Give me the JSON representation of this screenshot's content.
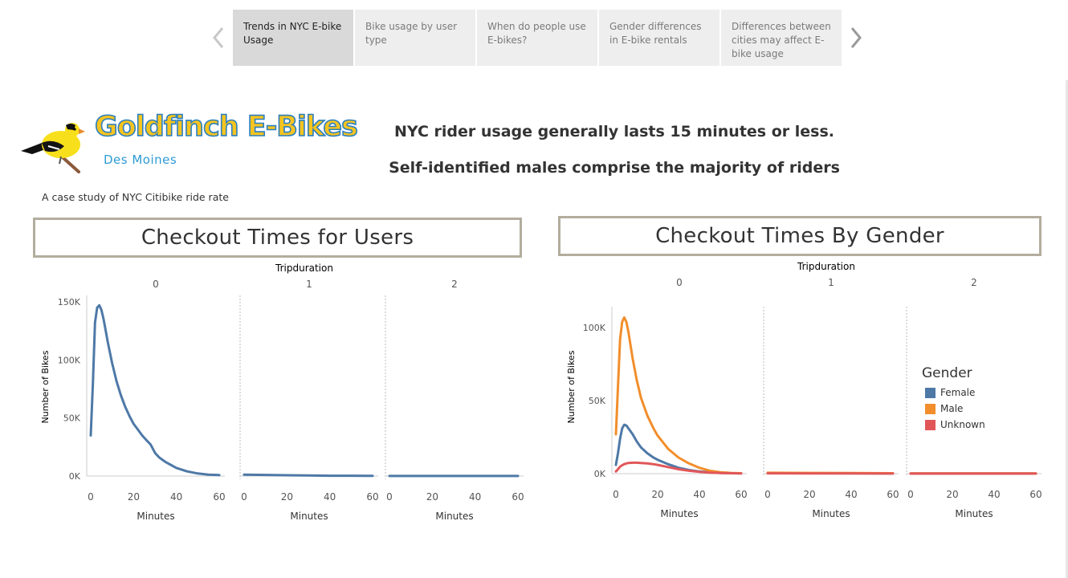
{
  "story_nav": {
    "tabs": [
      {
        "label": "Trends in NYC E-bike Usage",
        "active": true
      },
      {
        "label": "Bike usage by user type",
        "active": false
      },
      {
        "label": "When do people use E-bikes?",
        "active": false
      },
      {
        "label": "Gender differences in E-bike rentals",
        "active": false
      },
      {
        "label": "Differences between cities may affect E-bike usage",
        "active": false
      }
    ],
    "prev_icon": "chevron-left-icon",
    "next_icon": "chevron-right-icon"
  },
  "brand": {
    "title": "Goldfinch E-Bikes",
    "subtitle": "Des Moines",
    "logo_icon": "goldfinch-bird-icon"
  },
  "headlines": [
    "NYC rider usage generally lasts 15 minutes or less.",
    "Self-identified males comprise the majority of riders"
  ],
  "caption": "A case study of NYC Citibike ride rate",
  "colors": {
    "female": "#4e79a7",
    "male": "#f28e2b",
    "unknown": "#e15759",
    "title_border": "#b3ad9e"
  },
  "chart_data": [
    {
      "type": "line",
      "title": "Checkout Times for Users",
      "column_header": "Tripduration",
      "panels": [
        "0",
        "1",
        "2"
      ],
      "xlabel": "Minutes",
      "ylabel": "Number of Bikes",
      "xlim": [
        0,
        60
      ],
      "xticks": [
        0,
        20,
        40,
        60
      ],
      "xtick_labels": [
        "0",
        "20",
        "40",
        "60"
      ],
      "ylim": [
        0,
        150000
      ],
      "yticks": [
        0,
        50000,
        100000,
        150000
      ],
      "ytick_labels": [
        "0K",
        "50K",
        "100K",
        "150K"
      ],
      "series": [
        {
          "color": "#4e79a7",
          "panels": [
            {
              "x": [
                0,
                1,
                2,
                3,
                4,
                5,
                6,
                7,
                8,
                10,
                12,
                14,
                16,
                18,
                20,
                22,
                24,
                26,
                28,
                30,
                32,
                35,
                38,
                40,
                45,
                50,
                55,
                60
              ],
              "y": [
                35000,
                80000,
                132000,
                145000,
                147000,
                143000,
                135000,
                125000,
                115000,
                97000,
                82000,
                70000,
                60000,
                52000,
                45000,
                40000,
                35000,
                31000,
                27000,
                20000,
                16000,
                12000,
                9000,
                7000,
                4000,
                2200,
                1200,
                800
              ]
            },
            {
              "x": [
                0,
                10,
                20,
                30,
                40,
                50,
                60
              ],
              "y": [
                1200,
                1000,
                700,
                500,
                300,
                250,
                200
              ]
            },
            {
              "x": [
                0,
                20,
                40,
                60
              ],
              "y": [
                100,
                100,
                100,
                100
              ]
            }
          ]
        }
      ]
    },
    {
      "type": "line",
      "title": "Checkout Times By Gender",
      "column_header": "Tripduration",
      "panels": [
        "0",
        "1",
        "2"
      ],
      "xlabel": "Minutes",
      "ylabel": "Number of Bikes",
      "xlim": [
        0,
        60
      ],
      "xticks": [
        0,
        20,
        40,
        60
      ],
      "xtick_labels": [
        "0",
        "20",
        "40",
        "60"
      ],
      "ylim": [
        0,
        110000
      ],
      "yticks": [
        0,
        50000,
        100000
      ],
      "ytick_labels": [
        "0K",
        "50K",
        "100K"
      ],
      "legend": {
        "title": "Gender",
        "placement": "right"
      },
      "series": [
        {
          "name": "Female",
          "color": "#4e79a7",
          "panels": [
            {
              "x": [
                0,
                1,
                2,
                3,
                4,
                5,
                6,
                8,
                10,
                12,
                15,
                18,
                20,
                25,
                30,
                35,
                40,
                45,
                50,
                55,
                60
              ],
              "y": [
                6000,
                14000,
                24000,
                31000,
                33500,
                33000,
                31000,
                27000,
                22000,
                18000,
                14000,
                11000,
                9500,
                6500,
                4000,
                2500,
                1500,
                900,
                500,
                300,
                200
              ]
            },
            {
              "x": [
                0,
                20,
                40,
                60
              ],
              "y": [
                300,
                250,
                200,
                150
              ]
            },
            {
              "x": [
                0,
                20,
                40,
                60
              ],
              "y": [
                50,
                50,
                50,
                50
              ]
            }
          ]
        },
        {
          "name": "Male",
          "color": "#f28e2b",
          "panels": [
            {
              "x": [
                0,
                1,
                2,
                3,
                4,
                5,
                6,
                7,
                8,
                10,
                12,
                15,
                18,
                20,
                25,
                30,
                35,
                40,
                45,
                50,
                55,
                60
              ],
              "y": [
                27000,
                60000,
                92000,
                104000,
                107000,
                104000,
                97000,
                88000,
                79000,
                64000,
                52000,
                40000,
                31000,
                26000,
                17000,
                11000,
                7000,
                4000,
                2000,
                1000,
                500,
                300
              ]
            },
            {
              "x": [
                0,
                20,
                40,
                60
              ],
              "y": [
                600,
                500,
                400,
                300
              ]
            },
            {
              "x": [
                0,
                20,
                40,
                60
              ],
              "y": [
                100,
                100,
                100,
                100
              ]
            }
          ]
        },
        {
          "name": "Unknown",
          "color": "#e15759",
          "panels": [
            {
              "x": [
                0,
                1,
                2,
                3,
                4,
                5,
                6,
                8,
                10,
                12,
                15,
                18,
                20,
                25,
                30,
                35,
                40,
                45,
                50,
                55,
                60
              ],
              "y": [
                1500,
                3000,
                4800,
                5800,
                6500,
                7000,
                7300,
                7500,
                7500,
                7300,
                7000,
                6500,
                6000,
                4500,
                3000,
                2000,
                1200,
                700,
                400,
                250,
                150
              ]
            },
            {
              "x": [
                0,
                20,
                40,
                60
              ],
              "y": [
                200,
                150,
                100,
                80
              ]
            },
            {
              "x": [
                0,
                20,
                40,
                60
              ],
              "y": [
                30,
                30,
                30,
                30
              ]
            }
          ]
        }
      ]
    }
  ]
}
